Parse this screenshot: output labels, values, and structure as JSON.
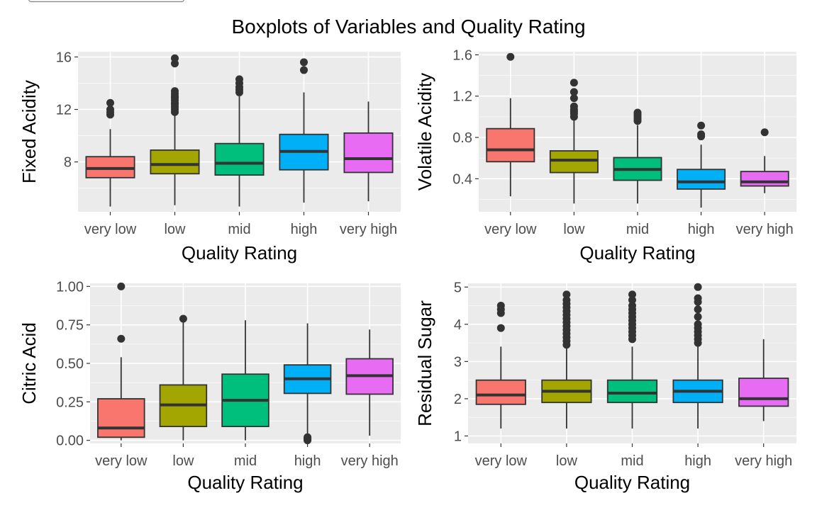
{
  "page_title": "Boxplots of Variables and Quality Rating",
  "colors": {
    "very_low": "#F8766D",
    "low": "#A3A500",
    "mid": "#00BF7D",
    "high": "#00B0F6",
    "very_high": "#E76BF3",
    "panel_bg": "#EBEBEB",
    "grid": "#FFFFFF"
  },
  "chart_data": [
    {
      "type": "boxplot",
      "title": "",
      "xlabel": "Quality Rating",
      "ylabel": "Fixed Acidity",
      "categories": [
        "very low",
        "low",
        "mid",
        "high",
        "very high"
      ],
      "ylim": [
        4.2,
        16.4
      ],
      "yticks": [
        8,
        12,
        16
      ],
      "grid": true,
      "legend": "none",
      "boxes": [
        {
          "q1": 6.8,
          "median": 7.5,
          "q3": 8.4,
          "whisker_low": 4.6,
          "whisker_high": 10.5,
          "outliers": [
            11.6,
            11.8,
            12.0,
            12.5
          ]
        },
        {
          "q1": 7.1,
          "median": 7.8,
          "q3": 8.9,
          "whisker_low": 4.7,
          "whisker_high": 11.6,
          "outliers": [
            11.8,
            12.0,
            12.2,
            12.4,
            12.5,
            12.7,
            12.9,
            13.0,
            13.2,
            13.4,
            15.5,
            15.9
          ]
        },
        {
          "q1": 7.0,
          "median": 7.9,
          "q3": 9.4,
          "whisker_low": 4.6,
          "whisker_high": 13.0,
          "outliers": [
            13.3,
            13.5,
            13.7,
            14.0,
            14.3
          ]
        },
        {
          "q1": 7.4,
          "median": 8.8,
          "q3": 10.1,
          "whisker_low": 4.9,
          "whisker_high": 13.3,
          "outliers": [
            15.0,
            15.6
          ]
        },
        {
          "q1": 7.2,
          "median": 8.25,
          "q3": 10.2,
          "whisker_low": 5.0,
          "whisker_high": 12.6,
          "outliers": []
        }
      ]
    },
    {
      "type": "boxplot",
      "title": "",
      "xlabel": "Quality Rating",
      "ylabel": "Volatile Acidity",
      "categories": [
        "very low",
        "low",
        "mid",
        "high",
        "very high"
      ],
      "ylim": [
        0.08,
        1.63
      ],
      "yticks": [
        0.4,
        0.8,
        1.2,
        1.6
      ],
      "yticklabels": [
        "0.4",
        "0.8",
        "1.2",
        "1.6"
      ],
      "grid": true,
      "legend": "none",
      "boxes": [
        {
          "q1": 0.565,
          "median": 0.68,
          "q3": 0.885,
          "whisker_low": 0.23,
          "whisker_high": 1.18,
          "outliers": [
            1.58
          ]
        },
        {
          "q1": 0.46,
          "median": 0.58,
          "q3": 0.67,
          "whisker_low": 0.16,
          "whisker_high": 0.98,
          "outliers": [
            1.0,
            1.03,
            1.05,
            1.07,
            1.1,
            1.18,
            1.24,
            1.33
          ]
        },
        {
          "q1": 0.385,
          "median": 0.49,
          "q3": 0.605,
          "whisker_low": 0.16,
          "whisker_high": 0.92,
          "outliers": [
            0.96,
            0.98,
            1.0,
            1.02,
            1.04
          ]
        },
        {
          "q1": 0.3,
          "median": 0.37,
          "q3": 0.49,
          "whisker_low": 0.12,
          "whisker_high": 0.73,
          "outliers": [
            0.81,
            0.83,
            0.915
          ]
        },
        {
          "q1": 0.33,
          "median": 0.37,
          "q3": 0.47,
          "whisker_low": 0.26,
          "whisker_high": 0.62,
          "outliers": [
            0.85
          ]
        }
      ]
    },
    {
      "type": "boxplot",
      "title": "",
      "xlabel": "Quality Rating",
      "ylabel": "Citric Acid",
      "categories": [
        "very low",
        "low",
        "mid",
        "high",
        "very high"
      ],
      "ylim": [
        -0.02,
        1.02
      ],
      "yticks": [
        0.0,
        0.25,
        0.5,
        0.75,
        1.0
      ],
      "yticklabels": [
        "0.00",
        "0.25",
        "0.50",
        "0.75",
        "1.00"
      ],
      "grid": true,
      "legend": "none",
      "boxes": [
        {
          "q1": 0.02,
          "median": 0.08,
          "q3": 0.27,
          "whisker_low": 0.0,
          "whisker_high": 0.54,
          "outliers": [
            0.66,
            1.0
          ]
        },
        {
          "q1": 0.09,
          "median": 0.23,
          "q3": 0.36,
          "whisker_low": 0.0,
          "whisker_high": 0.79,
          "outliers": [
            0.79
          ]
        },
        {
          "q1": 0.09,
          "median": 0.26,
          "q3": 0.43,
          "whisker_low": 0.0,
          "whisker_high": 0.78,
          "outliers": []
        },
        {
          "q1": 0.305,
          "median": 0.4,
          "q3": 0.49,
          "whisker_low": 0.03,
          "whisker_high": 0.76,
          "outliers": [
            0.0,
            0.005,
            0.01,
            0.015,
            0.02
          ]
        },
        {
          "q1": 0.3,
          "median": 0.42,
          "q3": 0.53,
          "whisker_low": 0.03,
          "whisker_high": 0.72,
          "outliers": []
        }
      ]
    },
    {
      "type": "boxplot",
      "title": "",
      "xlabel": "Quality Rating",
      "ylabel": "Residual Sugar",
      "categories": [
        "very low",
        "low",
        "mid",
        "high",
        "very high"
      ],
      "ylim": [
        0.8,
        5.1
      ],
      "yticks": [
        1,
        2,
        3,
        4,
        5
      ],
      "grid": true,
      "legend": "none",
      "boxes": [
        {
          "q1": 1.85,
          "median": 2.1,
          "q3": 2.5,
          "whisker_low": 1.2,
          "whisker_high": 3.4,
          "outliers": [
            3.9,
            4.3,
            4.4,
            4.5
          ]
        },
        {
          "q1": 1.9,
          "median": 2.2,
          "q3": 2.5,
          "whisker_low": 1.2,
          "whisker_high": 3.4,
          "outliers": [
            3.45,
            3.55,
            3.65,
            3.75,
            3.85,
            3.95,
            4.05,
            4.15,
            4.25,
            4.35,
            4.45,
            4.55,
            4.65,
            4.8
          ]
        },
        {
          "q1": 1.9,
          "median": 2.15,
          "q3": 2.5,
          "whisker_low": 1.2,
          "whisker_high": 3.4,
          "outliers": [
            3.6,
            3.7,
            3.8,
            3.9,
            4.0,
            4.1,
            4.2,
            4.3,
            4.4,
            4.5,
            4.65,
            4.8
          ]
        },
        {
          "q1": 1.9,
          "median": 2.2,
          "q3": 2.5,
          "whisker_low": 1.2,
          "whisker_high": 3.4,
          "outliers": [
            3.5,
            3.6,
            3.7,
            3.8,
            3.9,
            4.0,
            4.2,
            4.4,
            4.6,
            4.7,
            5.0
          ]
        },
        {
          "q1": 1.8,
          "median": 2.0,
          "q3": 2.55,
          "whisker_low": 1.4,
          "whisker_high": 3.6,
          "outliers": []
        }
      ]
    }
  ]
}
